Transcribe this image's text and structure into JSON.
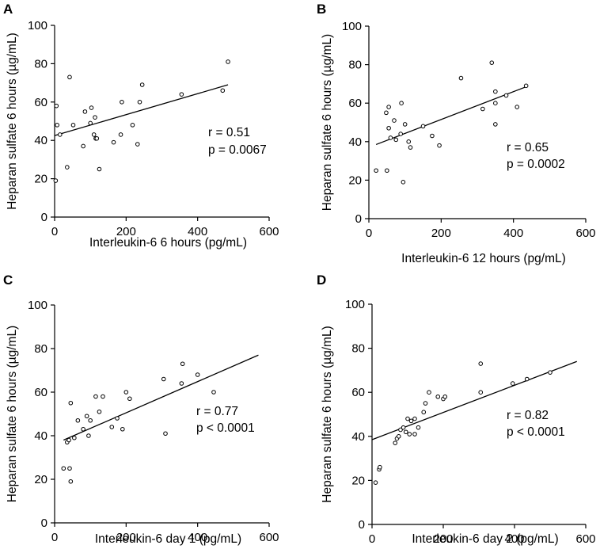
{
  "chart_data": [
    {
      "type": "scatter",
      "panel": "A",
      "xlabel": "Interleukin-6 6 hours (pg/mL)",
      "ylabel": "Heparan sulfate 6 hours (µg/mL)",
      "xlim": [
        0,
        600
      ],
      "ylim": [
        0,
        100
      ],
      "xticks": [
        0,
        200,
        400,
        600
      ],
      "yticks": [
        0,
        20,
        40,
        60,
        80,
        100
      ],
      "grid": false,
      "stats": {
        "r": "r = 0.51",
        "p": "p = 0.0067"
      },
      "points": [
        [
          5,
          58
        ],
        [
          7,
          48
        ],
        [
          3,
          19
        ],
        [
          15,
          43
        ],
        [
          35,
          26
        ],
        [
          42,
          73
        ],
        [
          52,
          48
        ],
        [
          80,
          37
        ],
        [
          85,
          55
        ],
        [
          100,
          49
        ],
        [
          103,
          57
        ],
        [
          110,
          43
        ],
        [
          113,
          52
        ],
        [
          115,
          41
        ],
        [
          118,
          41
        ],
        [
          125,
          25
        ],
        [
          165,
          39
        ],
        [
          185,
          43
        ],
        [
          188,
          60
        ],
        [
          218,
          48
        ],
        [
          232,
          38
        ],
        [
          238,
          60
        ],
        [
          245,
          69
        ],
        [
          355,
          64
        ],
        [
          470,
          66
        ],
        [
          485,
          81
        ]
      ],
      "fit": {
        "x": [
          0,
          485
        ],
        "y": [
          42.5,
          69
        ]
      }
    },
    {
      "type": "scatter",
      "panel": "B",
      "xlabel": "Interleukin-6 12 hours (pg/mL)",
      "ylabel": "Heparan sulfate 6 hours (µg/mL)",
      "xlim": [
        0,
        600
      ],
      "ylim": [
        0,
        100
      ],
      "xticks": [
        0,
        200,
        400,
        600
      ],
      "yticks": [
        0,
        20,
        40,
        60,
        80,
        100
      ],
      "grid": false,
      "stats": {
        "r": "r = 0.65",
        "p": "p = 0.0002"
      },
      "points": [
        [
          20,
          25
        ],
        [
          50,
          25
        ],
        [
          48,
          55
        ],
        [
          55,
          58
        ],
        [
          55,
          47
        ],
        [
          60,
          42
        ],
        [
          70,
          51
        ],
        [
          75,
          41
        ],
        [
          88,
          44
        ],
        [
          90,
          60
        ],
        [
          95,
          19
        ],
        [
          100,
          49
        ],
        [
          110,
          40
        ],
        [
          115,
          37
        ],
        [
          150,
          48
        ],
        [
          175,
          43
        ],
        [
          195,
          38
        ],
        [
          255,
          73
        ],
        [
          315,
          57
        ],
        [
          340,
          81
        ],
        [
          350,
          66
        ],
        [
          350,
          49
        ],
        [
          350,
          60
        ],
        [
          380,
          64
        ],
        [
          410,
          58
        ],
        [
          435,
          69
        ]
      ],
      "fit": {
        "x": [
          20,
          435
        ],
        "y": [
          38.5,
          68.5
        ]
      }
    },
    {
      "type": "scatter",
      "panel": "C",
      "xlabel": "Interleukin-6 day 1 (pg/mL)",
      "ylabel": "Heparan sulfate 6 hours (µg/mL)",
      "xlim": [
        0,
        600
      ],
      "ylim": [
        0,
        100
      ],
      "xticks": [
        0,
        200,
        400,
        600
      ],
      "yticks": [
        0,
        20,
        40,
        60,
        80,
        100
      ],
      "grid": false,
      "stats": {
        "r": "r = 0.77",
        "p": "p < 0.0001"
      },
      "points": [
        [
          25,
          25
        ],
        [
          35,
          37
        ],
        [
          40,
          38
        ],
        [
          42,
          25
        ],
        [
          45,
          19
        ],
        [
          45,
          55
        ],
        [
          55,
          39
        ],
        [
          65,
          47
        ],
        [
          80,
          43
        ],
        [
          90,
          49
        ],
        [
          95,
          40
        ],
        [
          100,
          47
        ],
        [
          115,
          58
        ],
        [
          125,
          51
        ],
        [
          135,
          58
        ],
        [
          160,
          44
        ],
        [
          175,
          48
        ],
        [
          190,
          43
        ],
        [
          200,
          60
        ],
        [
          210,
          57
        ],
        [
          305,
          66
        ],
        [
          310,
          41
        ],
        [
          355,
          64
        ],
        [
          358,
          73
        ],
        [
          400,
          68
        ],
        [
          445,
          60
        ]
      ],
      "fit": {
        "x": [
          25,
          570
        ],
        "y": [
          38,
          77
        ]
      }
    },
    {
      "type": "scatter",
      "panel": "D",
      "xlabel": "Interleukin-6 day 2 (pg/mL)",
      "ylabel": "Heparan sulfate 6 hours (µg/mL)",
      "xlim": [
        0,
        600
      ],
      "ylim": [
        0,
        100
      ],
      "xticks": [
        0,
        200,
        400,
        600
      ],
      "yticks": [
        0,
        20,
        40,
        60,
        80,
        100
      ],
      "grid": false,
      "stats": {
        "r": "r = 0.82",
        "p": "p < 0.0001"
      },
      "points": [
        [
          10,
          19
        ],
        [
          20,
          25
        ],
        [
          22,
          26
        ],
        [
          65,
          37
        ],
        [
          70,
          39
        ],
        [
          75,
          40
        ],
        [
          80,
          43
        ],
        [
          88,
          44
        ],
        [
          95,
          42
        ],
        [
          100,
          48
        ],
        [
          105,
          41
        ],
        [
          110,
          47
        ],
        [
          120,
          48
        ],
        [
          120,
          41
        ],
        [
          130,
          44
        ],
        [
          145,
          51
        ],
        [
          150,
          55
        ],
        [
          160,
          60
        ],
        [
          185,
          58
        ],
        [
          200,
          57
        ],
        [
          205,
          58
        ],
        [
          305,
          60
        ],
        [
          305,
          73
        ],
        [
          395,
          64
        ],
        [
          435,
          66
        ],
        [
          500,
          69
        ]
      ],
      "fit": {
        "x": [
          0,
          575
        ],
        "y": [
          38.5,
          74
        ]
      }
    }
  ]
}
